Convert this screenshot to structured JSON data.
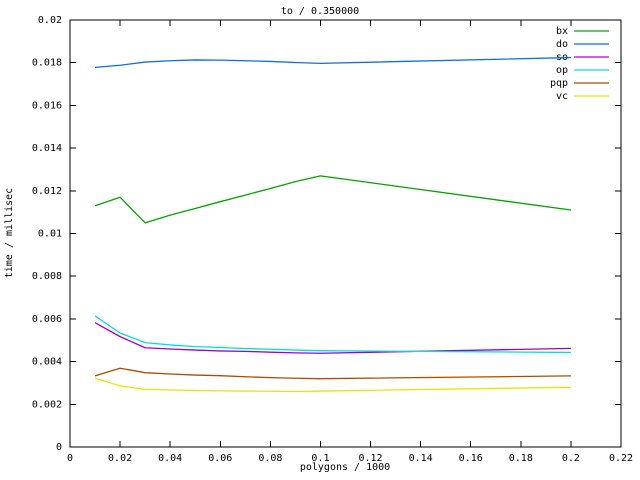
{
  "title": "to / 0.350000",
  "xlabel": "polygons / 1000",
  "ylabel": "time / millisec",
  "style": {
    "background": "#ffffff",
    "axis_color": "#000000",
    "text_color": "#000000"
  },
  "chart_data": {
    "type": "line",
    "title": "to / 0.350000",
    "xlabel": "polygons / 1000",
    "ylabel": "time / millisec",
    "xlim": [
      0,
      0.22
    ],
    "ylim": [
      0,
      0.02
    ],
    "grid": false,
    "legend_position": "top-right-inside",
    "x_tick_labels": [
      "0",
      "0.02",
      "0.04",
      "0.06",
      "0.08",
      "0.1",
      "0.12",
      "0.14",
      "0.16",
      "0.18",
      "0.2",
      "0.22"
    ],
    "x_tick_values": [
      0,
      0.02,
      0.04,
      0.06,
      0.08,
      0.1,
      0.12,
      0.14,
      0.16,
      0.18,
      0.2,
      0.22
    ],
    "y_tick_labels": [
      "0",
      "0.002",
      "0.004",
      "0.006",
      "0.008",
      "0.01",
      "0.012",
      "0.014",
      "0.016",
      "0.018",
      "0.02"
    ],
    "y_tick_values": [
      0,
      0.002,
      0.004,
      0.006,
      0.008,
      0.01,
      0.012,
      0.014,
      0.016,
      0.018,
      0.02
    ],
    "x": [
      0.01,
      0.02,
      0.03,
      0.04,
      0.05,
      0.06,
      0.07,
      0.08,
      0.09,
      0.1,
      0.2
    ],
    "series": [
      {
        "name": "bx",
        "color": "#00a400",
        "values": [
          0.0113,
          0.0117,
          0.0105,
          0.01086,
          0.01117,
          0.01149,
          0.0118,
          0.01211,
          0.01243,
          0.0127,
          0.0111
        ]
      },
      {
        "name": "do",
        "color": "#0a70e8",
        "values": [
          0.01778,
          0.01788,
          0.01803,
          0.01809,
          0.01813,
          0.01812,
          0.01809,
          0.01806,
          0.01801,
          0.01797,
          0.01824
        ]
      },
      {
        "name": "so",
        "color": "#a000d0",
        "values": [
          0.00582,
          0.00517,
          0.00465,
          0.00459,
          0.00454,
          0.0045,
          0.00448,
          0.00444,
          0.00441,
          0.00439,
          0.00462
        ]
      },
      {
        "name": "op",
        "color": "#00e0e0",
        "values": [
          0.00614,
          0.00534,
          0.00489,
          0.00478,
          0.0047,
          0.00466,
          0.00461,
          0.00458,
          0.00454,
          0.00451,
          0.00443
        ]
      },
      {
        "name": "pqp",
        "color": "#b04a00",
        "values": [
          0.00333,
          0.00369,
          0.00348,
          0.00342,
          0.00337,
          0.00334,
          0.00329,
          0.00325,
          0.00322,
          0.0032,
          0.00333
        ]
      },
      {
        "name": "vc",
        "color": "#e6e600",
        "values": [
          0.00322,
          0.00286,
          0.0027,
          0.00267,
          0.00265,
          0.00263,
          0.00262,
          0.00261,
          0.0026,
          0.00262,
          0.0028
        ]
      }
    ]
  }
}
